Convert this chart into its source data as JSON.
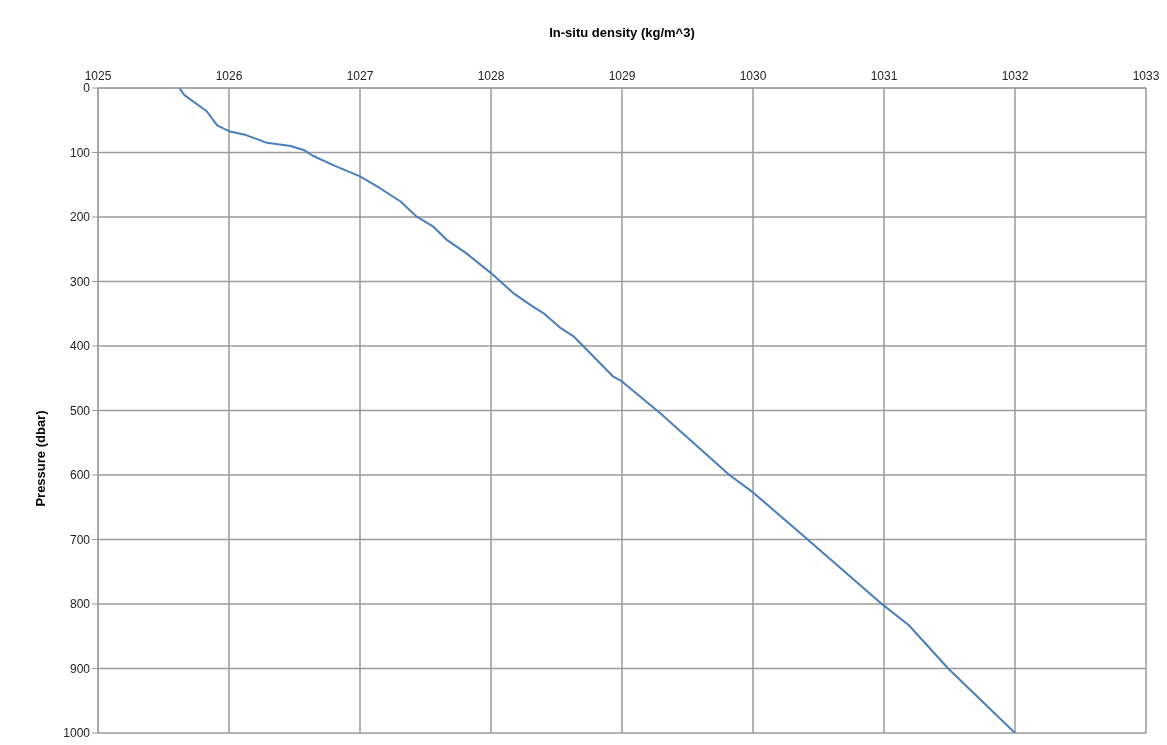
{
  "chart_data": {
    "type": "line",
    "xlabel": "In-situ density (kg/m^3)",
    "ylabel": "Pressure (dbar)",
    "xlim": [
      1025,
      1033
    ],
    "xticks": [
      1025,
      1026,
      1027,
      1028,
      1029,
      1030,
      1031,
      1032,
      1033
    ],
    "ylim": [
      1000,
      0
    ],
    "yticks": [
      0,
      100,
      200,
      300,
      400,
      500,
      600,
      700,
      800,
      900,
      1000
    ],
    "grid": true,
    "marker": "none",
    "line_style": "solid",
    "series": [
      {
        "color": "#4a7ebb",
        "x": [
          1025.62,
          1025.66,
          1025.83,
          1025.91,
          1026.0,
          1026.13,
          1026.29,
          1026.47,
          1026.57,
          1026.64,
          1026.8,
          1027.0,
          1027.15,
          1027.31,
          1027.43,
          1027.56,
          1027.66,
          1027.81,
          1028.0,
          1028.17,
          1028.32,
          1028.4,
          1028.53,
          1028.63,
          1028.93,
          1029.0,
          1029.29,
          1029.82,
          1030.0,
          1030.36,
          1030.99,
          1031.19,
          1031.49,
          1032.0
        ],
        "values": [
          0,
          11,
          36,
          58,
          67,
          73,
          85,
          90,
          96,
          105,
          120,
          137,
          155,
          176,
          199,
          215,
          235,
          256,
          287,
          318,
          339,
          349,
          372,
          385,
          447,
          455,
          504,
          600,
          627,
          690,
          801,
          833,
          900,
          1000
        ]
      }
    ]
  }
}
